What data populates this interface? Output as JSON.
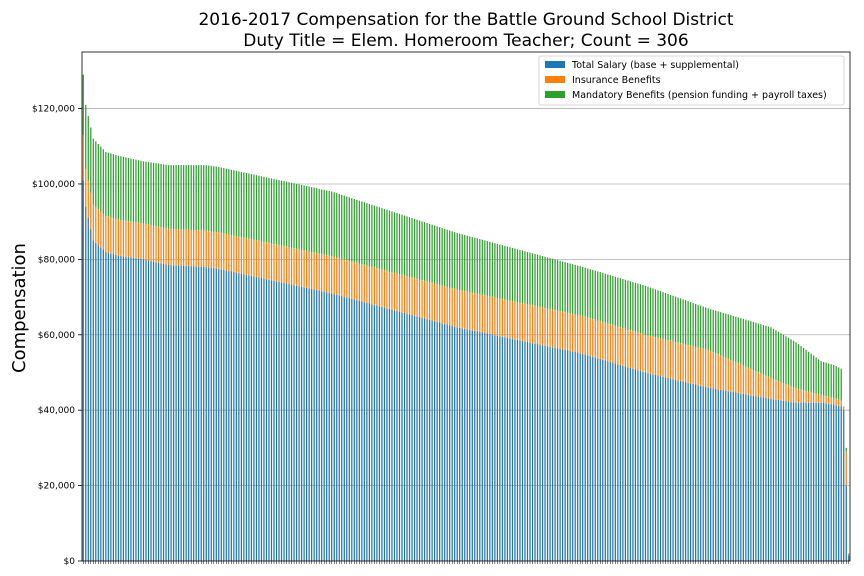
{
  "chart_data": {
    "type": "bar",
    "stacked": true,
    "title": "2016-2017 Compensation for the Battle Ground School District",
    "subtitle": "Duty Title = Elem. Homeroom Teacher; Count = 306",
    "xlabel": "",
    "ylabel": "Compensation",
    "ylim": [
      0,
      135000
    ],
    "yticks": [
      0,
      20000,
      40000,
      60000,
      80000,
      100000,
      120000
    ],
    "ytick_labels": [
      "$0",
      "$20,000",
      "$40,000",
      "$60,000",
      "$80,000",
      "$100,000",
      "$120,000"
    ],
    "grid": "horizontal",
    "legend_position": "top-right",
    "count": 306,
    "series_meta": [
      {
        "name": "Total Salary (base + supplemental)",
        "color": "#1f77b4"
      },
      {
        "name": "Insurance Benefits",
        "color": "#ff7f0e"
      },
      {
        "name": "Mandatory Benefits (pension funding + payroll taxes)",
        "color": "#2ca02c"
      }
    ],
    "total_profile": {
      "note_free": true,
      "ranks": [
        0,
        1,
        4,
        9,
        14,
        24,
        34,
        49,
        54,
        99,
        149,
        199,
        224,
        249,
        274,
        284,
        294,
        299,
        302,
        303,
        304,
        305
      ],
      "totals": [
        129000,
        121000,
        112000,
        108500,
        107500,
        106000,
        105000,
        105000,
        104500,
        98000,
        87000,
        78000,
        73000,
        67000,
        62000,
        58000,
        53000,
        52000,
        51000,
        41000,
        30000,
        2000
      ]
    },
    "salary_profile": {
      "ranks": [
        0,
        1,
        4,
        9,
        14,
        24,
        34,
        49,
        54,
        99,
        149,
        199,
        224,
        249,
        274,
        284,
        294,
        299,
        302,
        303,
        304,
        305
      ],
      "values": [
        101000,
        94000,
        85000,
        82000,
        81000,
        80000,
        78500,
        78000,
        77500,
        71000,
        62000,
        55000,
        50000,
        46000,
        43000,
        42000,
        42000,
        41500,
        41000,
        40000,
        20000,
        1500
      ]
    },
    "insurance_profile": {
      "ranks": [
        0,
        1,
        4,
        9,
        149,
        249,
        294,
        303,
        304,
        305
      ],
      "values": [
        12000,
        10000,
        9500,
        9500,
        10000,
        10000,
        2000,
        1500,
        9000,
        500
      ]
    }
  }
}
